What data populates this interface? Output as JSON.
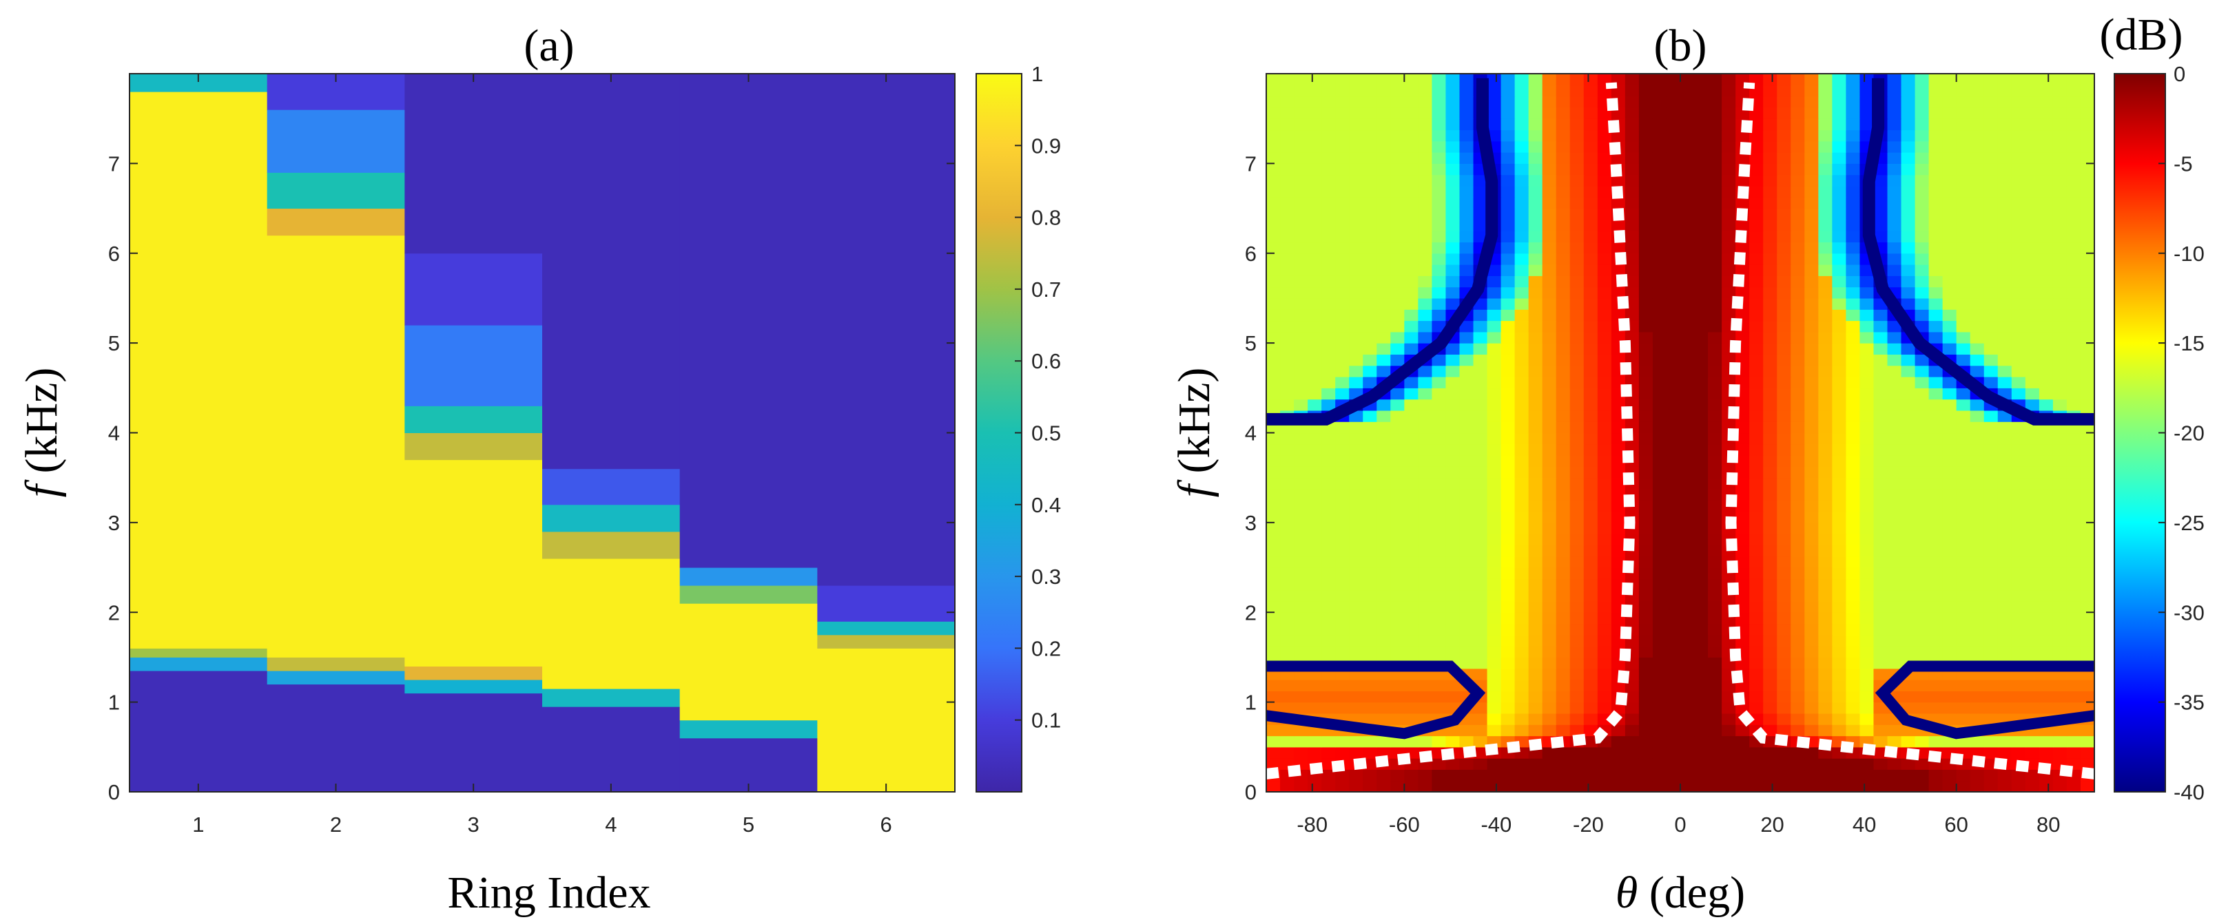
{
  "chart_data": [
    {
      "type": "heatmap",
      "title": "(a)",
      "xlabel": "Ring Index",
      "ylabel_symbol": "f",
      "ylabel_unit": "(kHz)",
      "x_categories": [
        1,
        2,
        3,
        4,
        5,
        6
      ],
      "ylim": [
        0,
        8
      ],
      "yticks": [
        0,
        1,
        2,
        3,
        4,
        5,
        6,
        7
      ],
      "colorbar": {
        "ticks": [
          0.1,
          0.2,
          0.3,
          0.4,
          0.5,
          0.6,
          0.7,
          0.8,
          0.9,
          1
        ],
        "range": [
          0,
          1
        ],
        "label": ""
      },
      "columns": [
        {
          "ring": 1,
          "segments": [
            {
              "from": 0.0,
              "to": 1.35,
              "value": 0.03
            },
            {
              "from": 1.35,
              "to": 1.5,
              "value": 0.35
            },
            {
              "from": 1.5,
              "to": 1.6,
              "value": 0.7
            },
            {
              "from": 1.6,
              "to": 7.8,
              "value": 0.97
            },
            {
              "from": 7.8,
              "to": 8.0,
              "value": 0.45
            }
          ]
        },
        {
          "ring": 2,
          "segments": [
            {
              "from": 0.0,
              "to": 1.2,
              "value": 0.03
            },
            {
              "from": 1.2,
              "to": 1.35,
              "value": 0.35
            },
            {
              "from": 1.35,
              "to": 1.5,
              "value": 0.75
            },
            {
              "from": 1.5,
              "to": 6.2,
              "value": 0.97
            },
            {
              "from": 6.2,
              "to": 6.5,
              "value": 0.8
            },
            {
              "from": 6.5,
              "to": 6.9,
              "value": 0.5
            },
            {
              "from": 6.9,
              "to": 7.6,
              "value": 0.25
            },
            {
              "from": 7.6,
              "to": 8.0,
              "value": 0.1
            }
          ]
        },
        {
          "ring": 3,
          "segments": [
            {
              "from": 0.0,
              "to": 1.1,
              "value": 0.03
            },
            {
              "from": 1.1,
              "to": 1.25,
              "value": 0.4
            },
            {
              "from": 1.25,
              "to": 1.4,
              "value": 0.8
            },
            {
              "from": 1.4,
              "to": 3.7,
              "value": 0.97
            },
            {
              "from": 3.7,
              "to": 4.0,
              "value": 0.75
            },
            {
              "from": 4.0,
              "to": 4.3,
              "value": 0.5
            },
            {
              "from": 4.3,
              "to": 5.2,
              "value": 0.22
            },
            {
              "from": 5.2,
              "to": 6.0,
              "value": 0.1
            },
            {
              "from": 6.0,
              "to": 8.0,
              "value": 0.03
            }
          ]
        },
        {
          "ring": 4,
          "segments": [
            {
              "from": 0.0,
              "to": 0.95,
              "value": 0.03
            },
            {
              "from": 0.95,
              "to": 1.15,
              "value": 0.45
            },
            {
              "from": 1.15,
              "to": 2.6,
              "value": 0.97
            },
            {
              "from": 2.6,
              "to": 2.9,
              "value": 0.75
            },
            {
              "from": 2.9,
              "to": 3.2,
              "value": 0.45
            },
            {
              "from": 3.2,
              "to": 3.6,
              "value": 0.15
            },
            {
              "from": 3.6,
              "to": 8.0,
              "value": 0.03
            }
          ]
        },
        {
          "ring": 5,
          "segments": [
            {
              "from": 0.0,
              "to": 0.6,
              "value": 0.03
            },
            {
              "from": 0.6,
              "to": 0.8,
              "value": 0.45
            },
            {
              "from": 0.8,
              "to": 2.1,
              "value": 0.97
            },
            {
              "from": 2.1,
              "to": 2.3,
              "value": 0.65
            },
            {
              "from": 2.3,
              "to": 2.5,
              "value": 0.3
            },
            {
              "from": 2.5,
              "to": 8.0,
              "value": 0.03
            }
          ]
        },
        {
          "ring": 6,
          "segments": [
            {
              "from": 0.0,
              "to": 1.6,
              "value": 0.97
            },
            {
              "from": 1.6,
              "to": 1.75,
              "value": 0.75
            },
            {
              "from": 1.75,
              "to": 1.9,
              "value": 0.45
            },
            {
              "from": 1.9,
              "to": 2.3,
              "value": 0.1
            },
            {
              "from": 2.3,
              "to": 8.0,
              "value": 0.03
            }
          ]
        }
      ]
    },
    {
      "type": "heatmap",
      "title": "(b)",
      "xlabel_symbol": "θ",
      "xlabel_unit": "(deg)",
      "ylabel_symbol": "f",
      "ylabel_unit": "(kHz)",
      "xlim": [
        -90,
        90
      ],
      "xticks": [
        -80,
        -60,
        -40,
        -20,
        0,
        20,
        40,
        60,
        80
      ],
      "ylim": [
        0,
        8
      ],
      "yticks": [
        0,
        1,
        2,
        3,
        4,
        5,
        6,
        7
      ],
      "colorbar": {
        "label": "(dB)",
        "ticks": [
          0,
          -5,
          -10,
          -15,
          -20,
          -25,
          -30,
          -35,
          -40
        ],
        "range": [
          -40,
          0
        ]
      },
      "mainlobe_halfwidth_deg": [
        {
          "f": 0.2,
          "theta": 90
        },
        {
          "f": 0.6,
          "theta": 18
        },
        {
          "f": 0.9,
          "theta": 13
        },
        {
          "f": 1.5,
          "theta": 12
        },
        {
          "f": 3.0,
          "theta": 11
        },
        {
          "f": 5.0,
          "theta": 12
        },
        {
          "f": 7.0,
          "theta": 14
        },
        {
          "f": 7.9,
          "theta": 15
        }
      ],
      "null_curve_upper": [
        {
          "f": 4.15,
          "theta": 90
        },
        {
          "f": 4.15,
          "theta": 77
        },
        {
          "f": 4.4,
          "theta": 67
        },
        {
          "f": 5.0,
          "theta": 52
        },
        {
          "f": 5.6,
          "theta": 44
        },
        {
          "f": 6.2,
          "theta": 41
        },
        {
          "f": 6.8,
          "theta": 41
        },
        {
          "f": 7.4,
          "theta": 43
        },
        {
          "f": 7.95,
          "theta": 43
        }
      ],
      "null_curve_lower": [
        {
          "f": 1.4,
          "theta": 90
        },
        {
          "f": 1.4,
          "theta": 50
        },
        {
          "f": 1.1,
          "theta": 44
        },
        {
          "f": 0.8,
          "theta": 49
        },
        {
          "f": 0.65,
          "theta": 60
        },
        {
          "f": 0.7,
          "theta": 68
        },
        {
          "f": 0.85,
          "theta": 90
        }
      ]
    }
  ]
}
